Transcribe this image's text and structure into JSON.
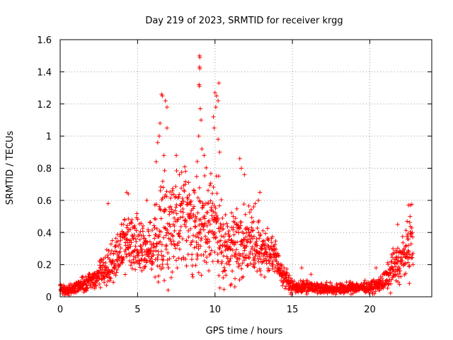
{
  "chart_data": {
    "type": "scatter",
    "title": "Day 219 of 2023, SRMTID for receiver krgg",
    "xlabel": "GPS time / hours",
    "ylabel": "SRMTID / TECUs",
    "xlim": [
      0,
      24
    ],
    "ylim": [
      0,
      1.6
    ],
    "xticks": [
      0,
      5,
      10,
      15,
      20
    ],
    "xtick_labels": [
      "0",
      "5",
      "10",
      "15",
      "20"
    ],
    "yticks": [
      0,
      0.2,
      0.4,
      0.6,
      0.8,
      1.0,
      1.2,
      1.4,
      1.6
    ],
    "ytick_labels": [
      "0",
      "0.2",
      "0.4",
      "0.6",
      "0.8",
      "1",
      "1.2",
      "1.4",
      "1.6"
    ],
    "grid": true,
    "marker": "plus",
    "series": [
      {
        "name": "SRMTID",
        "color": "#ff0000",
        "envelope": {
          "x": [
            0,
            0.3,
            0.7,
            1.0,
            1.5,
            2.0,
            2.5,
            3.0,
            3.5,
            4.0,
            4.5,
            5.0,
            5.5,
            6.0,
            6.5,
            7.0,
            7.5,
            8.0,
            8.5,
            9.0,
            9.5,
            10.0,
            10.5,
            11.0,
            11.5,
            12.0,
            12.5,
            13.0,
            13.5,
            14.0,
            14.5,
            15.0,
            15.5,
            16.0,
            16.5,
            17.0,
            17.5,
            18.0,
            18.5,
            19.0,
            19.5,
            20.0,
            20.5,
            21.0,
            21.5,
            22.0,
            22.5,
            22.8
          ],
          "y_center": [
            0.06,
            0.04,
            0.05,
            0.06,
            0.08,
            0.1,
            0.13,
            0.18,
            0.24,
            0.3,
            0.34,
            0.32,
            0.27,
            0.3,
            0.42,
            0.45,
            0.48,
            0.52,
            0.42,
            0.45,
            0.42,
            0.45,
            0.34,
            0.3,
            0.35,
            0.35,
            0.32,
            0.3,
            0.28,
            0.22,
            0.12,
            0.06,
            0.06,
            0.07,
            0.06,
            0.05,
            0.05,
            0.05,
            0.05,
            0.06,
            0.06,
            0.06,
            0.07,
            0.1,
            0.18,
            0.22,
            0.3,
            0.36
          ],
          "y_spread": [
            0.04,
            0.03,
            0.03,
            0.04,
            0.05,
            0.05,
            0.07,
            0.1,
            0.13,
            0.16,
            0.18,
            0.16,
            0.15,
            0.2,
            0.3,
            0.28,
            0.28,
            0.25,
            0.25,
            0.3,
            0.25,
            0.3,
            0.22,
            0.2,
            0.22,
            0.22,
            0.16,
            0.15,
            0.12,
            0.1,
            0.06,
            0.04,
            0.04,
            0.04,
            0.03,
            0.03,
            0.03,
            0.03,
            0.03,
            0.03,
            0.03,
            0.03,
            0.04,
            0.06,
            0.1,
            0.12,
            0.15,
            0.17
          ]
        },
        "peaks": [
          {
            "x": 6.55,
            "y": 1.26
          },
          {
            "x": 6.6,
            "y": 1.25
          },
          {
            "x": 6.8,
            "y": 1.22
          },
          {
            "x": 6.9,
            "y": 1.18
          },
          {
            "x": 6.45,
            "y": 1.08
          },
          {
            "x": 6.4,
            "y": 1.0
          },
          {
            "x": 6.3,
            "y": 0.96
          },
          {
            "x": 6.9,
            "y": 1.05
          },
          {
            "x": 6.7,
            "y": 0.88
          },
          {
            "x": 7.5,
            "y": 0.88
          },
          {
            "x": 7.7,
            "y": 0.76
          },
          {
            "x": 6.2,
            "y": 0.84
          },
          {
            "x": 9.0,
            "y": 1.5
          },
          {
            "x": 9.02,
            "y": 1.49
          },
          {
            "x": 9.0,
            "y": 1.43
          },
          {
            "x": 9.02,
            "y": 1.42
          },
          {
            "x": 8.97,
            "y": 1.32
          },
          {
            "x": 9.0,
            "y": 1.31
          },
          {
            "x": 9.05,
            "y": 1.17
          },
          {
            "x": 9.1,
            "y": 1.1
          },
          {
            "x": 8.95,
            "y": 1.0
          },
          {
            "x": 9.15,
            "y": 0.92
          },
          {
            "x": 9.3,
            "y": 0.88
          },
          {
            "x": 10.0,
            "y": 1.27
          },
          {
            "x": 10.1,
            "y": 1.25
          },
          {
            "x": 10.2,
            "y": 1.22
          },
          {
            "x": 10.25,
            "y": 1.33
          },
          {
            "x": 10.05,
            "y": 1.18
          },
          {
            "x": 9.9,
            "y": 1.12
          },
          {
            "x": 9.95,
            "y": 1.05
          },
          {
            "x": 10.2,
            "y": 0.98
          },
          {
            "x": 10.3,
            "y": 0.9
          },
          {
            "x": 11.6,
            "y": 0.86
          },
          {
            "x": 11.7,
            "y": 0.8
          },
          {
            "x": 11.9,
            "y": 0.76
          },
          {
            "x": 12.5,
            "y": 0.56
          },
          {
            "x": 12.6,
            "y": 0.58
          },
          {
            "x": 12.8,
            "y": 0.6
          },
          {
            "x": 12.9,
            "y": 0.65
          },
          {
            "x": 4.3,
            "y": 0.65
          },
          {
            "x": 4.4,
            "y": 0.64
          },
          {
            "x": 3.1,
            "y": 0.58
          },
          {
            "x": 8.1,
            "y": 0.78
          },
          {
            "x": 5.6,
            "y": 0.6
          },
          {
            "x": 22.5,
            "y": 0.57
          },
          {
            "x": 22.6,
            "y": 0.57
          },
          {
            "x": 22.6,
            "y": 0.5
          },
          {
            "x": 21.8,
            "y": 0.45
          },
          {
            "x": 14.9,
            "y": 0.1
          },
          {
            "x": 15.6,
            "y": 0.18
          },
          {
            "x": 16.2,
            "y": 0.14
          },
          {
            "x": 20.4,
            "y": 0.18
          },
          {
            "x": 21.5,
            "y": 0.3
          }
        ]
      }
    ]
  }
}
